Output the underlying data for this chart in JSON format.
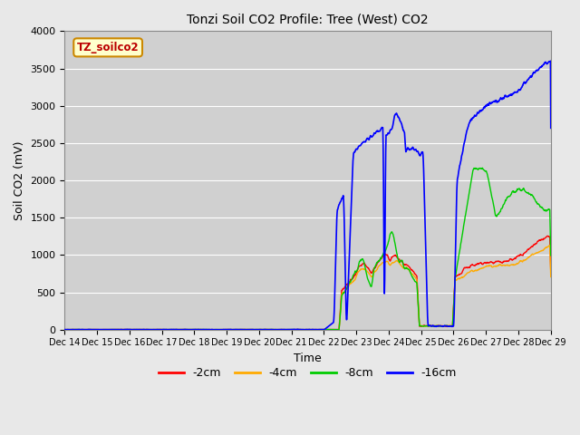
{
  "title": "Tonzi Soil CO2 Profile: Tree (West) CO2",
  "ylabel": "Soil CO2 (mV)",
  "xlabel": "Time",
  "watermark": "TZ_soilco2",
  "ylim": [
    0,
    4000
  ],
  "background_color": "#e8e8e8",
  "plot_bg_color": "#d0d0d0",
  "grid_color": "#ffffff",
  "series": {
    "2cm": {
      "color": "#ff0000",
      "label": "-2cm"
    },
    "4cm": {
      "color": "#ffaa00",
      "label": "-4cm"
    },
    "8cm": {
      "color": "#00cc00",
      "label": "-8cm"
    },
    "16cm": {
      "color": "#0000ff",
      "label": "-16cm"
    }
  },
  "tick_labels": [
    "Dec 14",
    "Dec 15",
    "Dec 16",
    "Dec 17",
    "Dec 18",
    "Dec 19",
    "Dec 20",
    "Dec 21",
    "Dec 22",
    "Dec 23",
    "Dec 24",
    "Dec 25",
    "Dec 26",
    "Dec 27",
    "Dec 28",
    "Dec 29"
  ]
}
